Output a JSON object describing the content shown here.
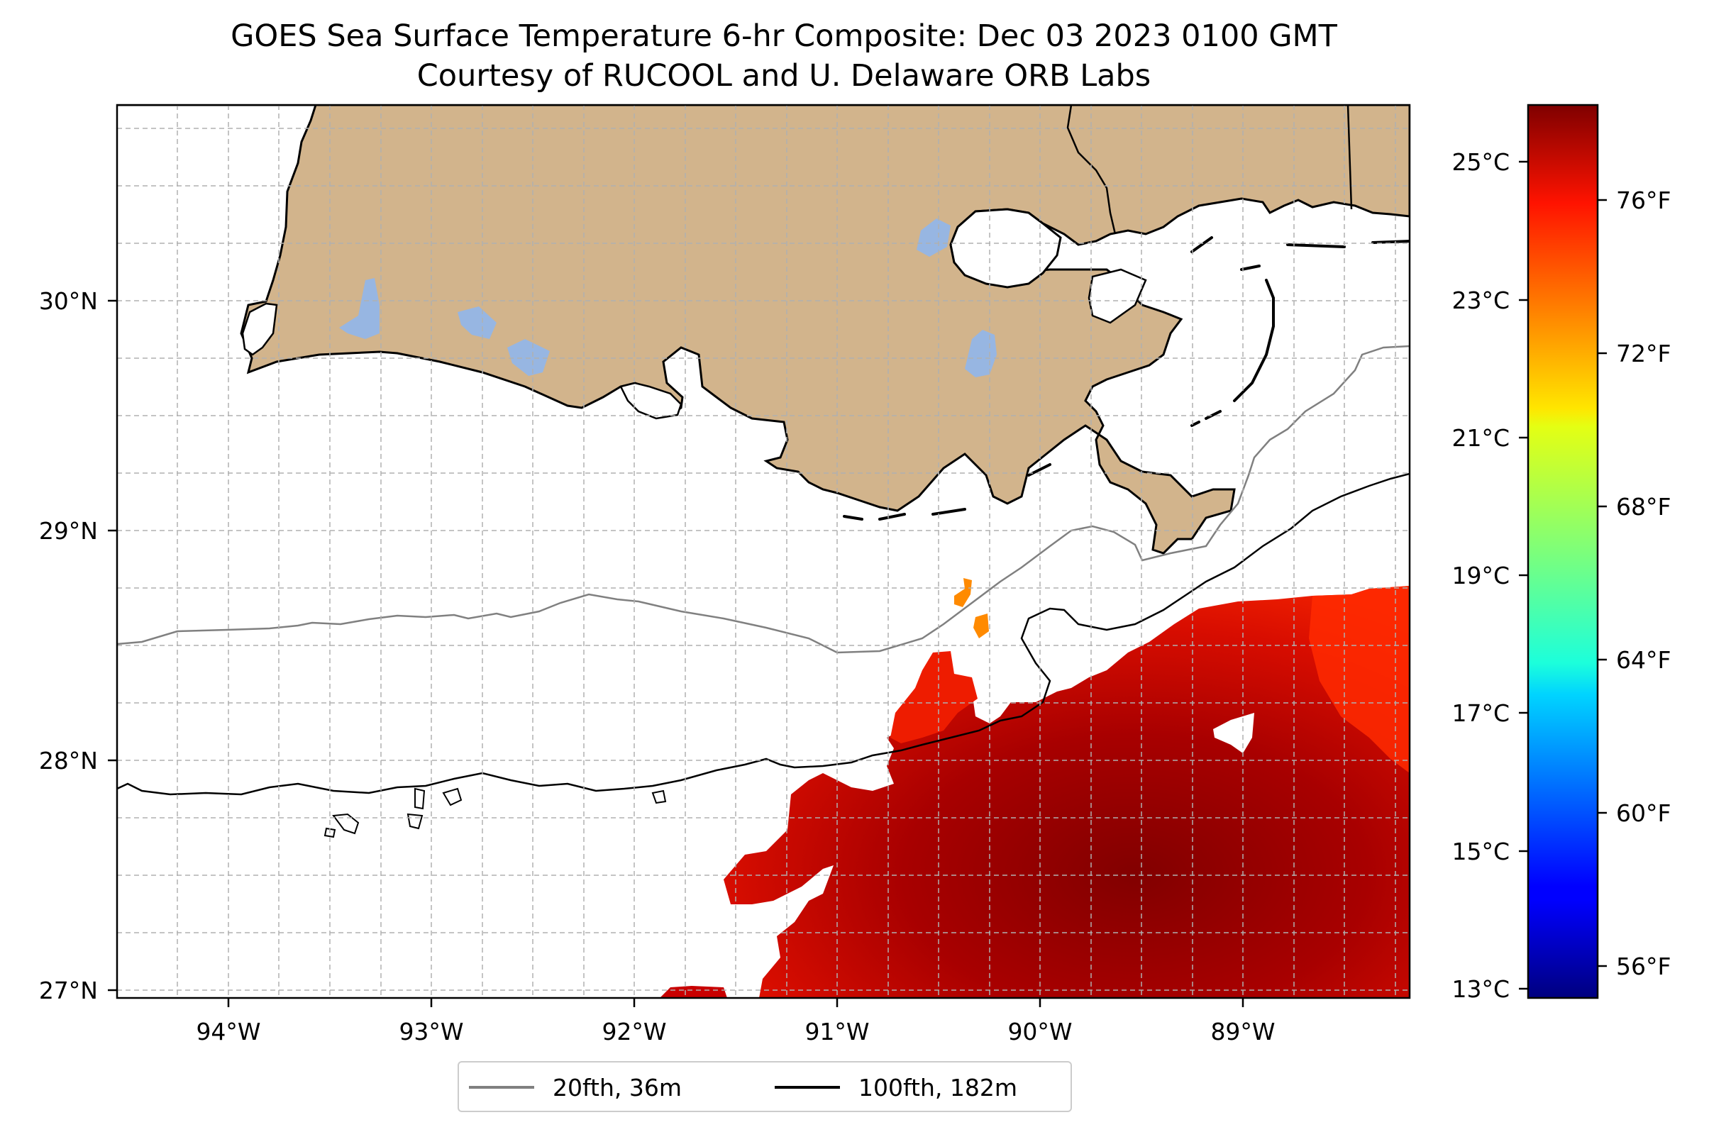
{
  "title": {
    "line1": "GOES Sea Surface Temperature 6-hr Composite: Dec 03 2023 0100 GMT",
    "line2": "Courtesy of RUCOOL and U. Delaware ORB Labs"
  },
  "map": {
    "lon_range": [
      -94.55,
      -88.2
    ],
    "lat_range": [
      26.93,
      30.83
    ],
    "lon_ticks": [
      "94°W",
      "93°W",
      "92°W",
      "91°W",
      "90°W",
      "89°W"
    ],
    "lat_ticks": [
      "30°N",
      "29°N",
      "28°N",
      "27°N"
    ],
    "land_color": "#d2b48c",
    "lake_color": "#97b6e2",
    "gridlines": true
  },
  "legend": {
    "items": [
      {
        "label": "20fth, 36m",
        "color": "#808080"
      },
      {
        "label": "100fth, 182m",
        "color": "#000000"
      }
    ],
    "placement": "bottom-center"
  },
  "colorbar": {
    "celsius_ticks": [
      "25°C",
      "23°C",
      "21°C",
      "19°C",
      "17°C",
      "15°C",
      "13°C"
    ],
    "fahrenheit_ticks": [
      "76°F",
      "72°F",
      "68°F",
      "64°F",
      "60°F",
      "56°F"
    ],
    "colormap": "jet",
    "range_celsius": [
      12.9,
      25.9
    ]
  }
}
